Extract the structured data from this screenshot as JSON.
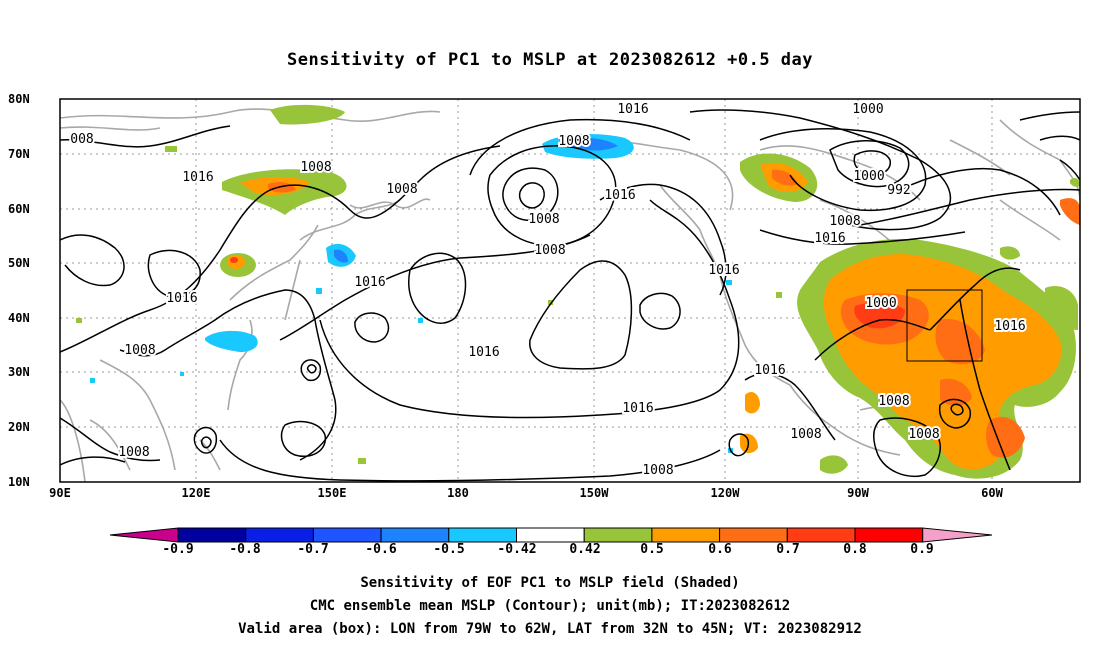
{
  "title": "Sensitivity of PC1 to MSLP at 2023082612 +0.5 day",
  "lat_labels": [
    "80N",
    "70N",
    "60N",
    "50N",
    "40N",
    "30N",
    "20N",
    "10N"
  ],
  "lon_labels": [
    "90E",
    "120E",
    "150E",
    "180",
    "150W",
    "120W",
    "90W",
    "60W"
  ],
  "contour_labels": [
    "1016",
    "008",
    "1008",
    "1016",
    "1008",
    "1008",
    "1016",
    "1016",
    "1008",
    "1016",
    "1000",
    "1008",
    "1008",
    "1016",
    "1016",
    "1016",
    "1000",
    "992",
    "1000",
    "1008",
    "1016",
    "1016",
    "1016",
    "1008",
    "1008",
    "1008",
    "1008",
    "1008"
  ],
  "colorbar": {
    "labels": [
      "-0.9",
      "-0.8",
      "-0.7",
      "-0.6",
      "-0.5",
      "-0.42",
      "0.42",
      "0.5",
      "0.6",
      "0.7",
      "0.8",
      "0.9"
    ],
    "colors": [
      "#0000a0",
      "#0a1fe6",
      "#1e55ff",
      "#1e82ff",
      "#19c8ff",
      "#ffffff",
      "#98c43a",
      "#ff9c00",
      "#ff6e14",
      "#ff3c14",
      "#ff0000"
    ],
    "end_low_color": "#c8008c",
    "end_high_color": "#f5a0c8"
  },
  "footer": {
    "line1": "Sensitivity of EOF PC1 to MSLP field (Shaded)",
    "line2": "CMC ensemble mean MSLP (Contour); unit(mb); IT:2023082612",
    "line3": "Valid area (box): LON from 79W to 62W, LAT from 32N to 45N; VT: 2023082912"
  }
}
